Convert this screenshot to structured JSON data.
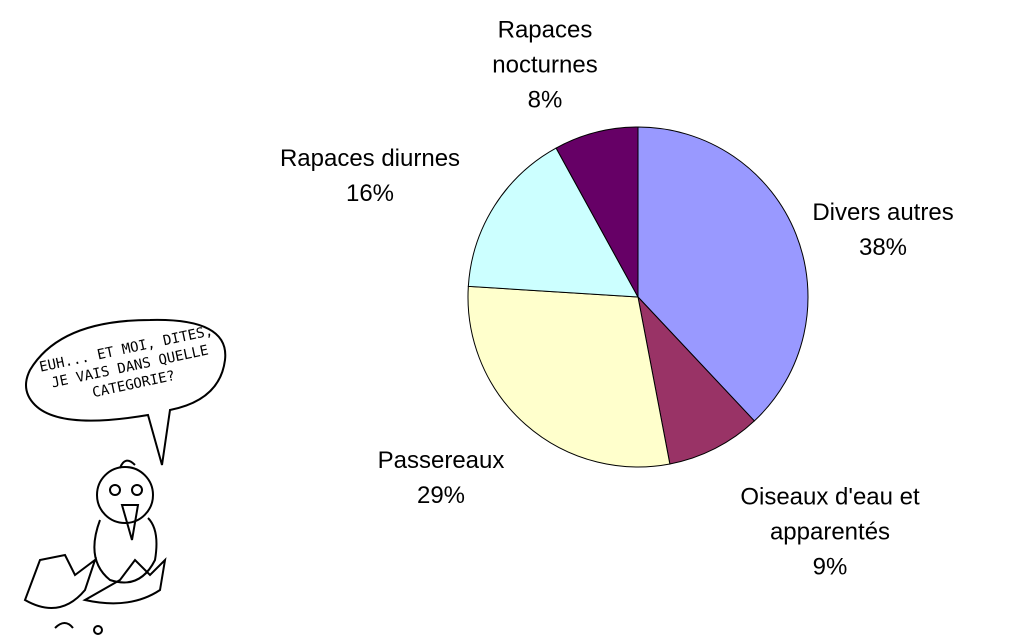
{
  "chart_data": {
    "type": "pie",
    "categories": [
      "Divers autres",
      "Oiseaux d'eau et apparentés",
      "Passereaux",
      "Rapaces diurnes",
      "Rapaces nocturnes"
    ],
    "values": [
      38,
      9,
      29,
      16,
      8
    ],
    "value_labels": [
      "38%",
      "9%",
      "29%",
      "16%",
      "8%"
    ],
    "colors": [
      "#9999ff",
      "#993366",
      "#ffffcc",
      "#ccffff",
      "#660066"
    ],
    "annotation": "EUH... ET MOI, DITES, JE VAIS DANS QUELLE CATEGORIE?"
  }
}
